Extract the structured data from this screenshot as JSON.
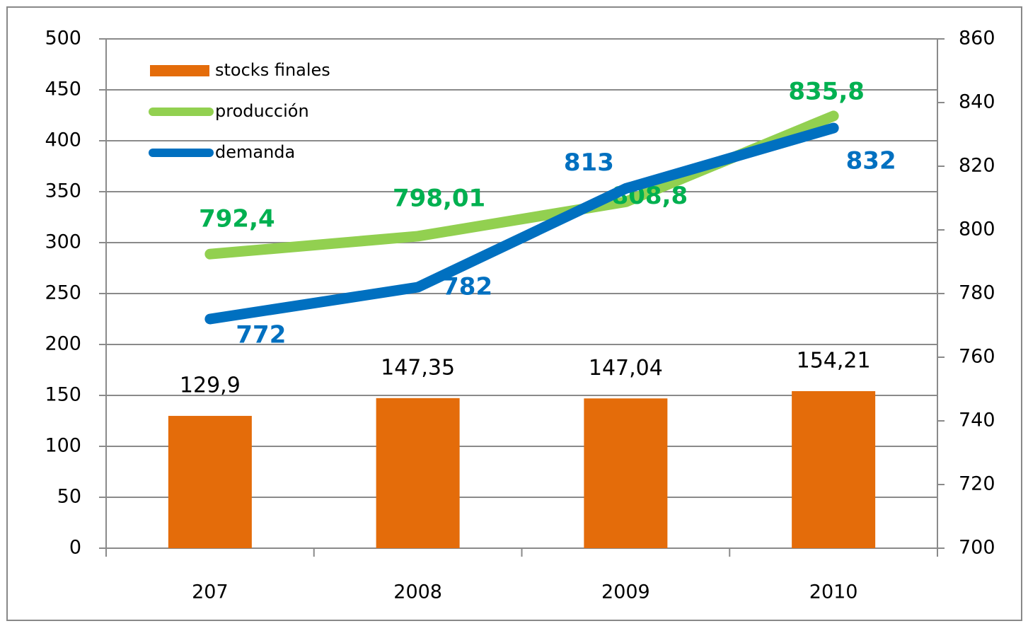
{
  "chart_data": {
    "type": "bar_line",
    "categories": [
      "207",
      "2008",
      "2009",
      "2010"
    ],
    "series": [
      {
        "name": "stocks finales",
        "type": "bar",
        "color": "#e46c0a",
        "label_color": "#000000",
        "values": [
          129.9,
          147.35,
          147.04,
          154.21
        ],
        "value_labels": [
          "129,9",
          "147,35",
          "147,04",
          "154,21"
        ]
      },
      {
        "name": "producción",
        "type": "line",
        "axis": "y2",
        "color": "#92d050",
        "label_color": "#00b050",
        "values": [
          792.4,
          798.01,
          808.8,
          835.8
        ],
        "value_labels": [
          "792,4",
          "798,01",
          "808,8",
          "835,8"
        ]
      },
      {
        "name": "demanda",
        "type": "line",
        "axis": "y2",
        "color": "#0070c0",
        "label_color": "#0070c0",
        "values": [
          772,
          782,
          813,
          832
        ]
      }
    ],
    "ylim": [
      0,
      500
    ],
    "yticks": [
      0,
      50,
      100,
      150,
      200,
      250,
      300,
      350,
      400,
      450,
      500
    ],
    "y2lim": [
      700,
      860
    ],
    "y2ticks": [
      700,
      720,
      740,
      760,
      780,
      800,
      820,
      840,
      860
    ],
    "grid": true,
    "legend": "top-left"
  }
}
